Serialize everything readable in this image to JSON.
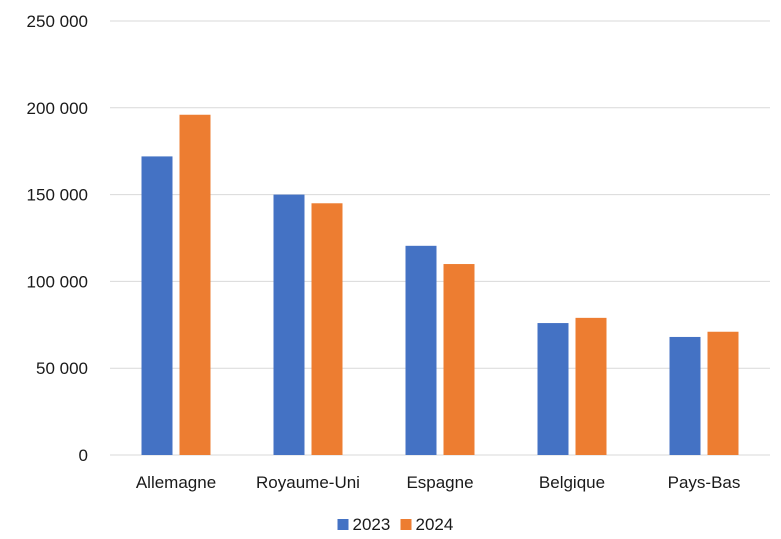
{
  "chart_data": {
    "type": "bar",
    "categories": [
      "Allemagne",
      "Royaume-Uni",
      "Espagne",
      "Belgique",
      "Pays-Bas"
    ],
    "series": [
      {
        "name": "2023",
        "color": "#4472C4",
        "values": [
          172000,
          150000,
          120500,
          76000,
          68000
        ]
      },
      {
        "name": "2024",
        "color": "#ED7D31",
        "values": [
          196000,
          145000,
          110000,
          79000,
          71000
        ]
      }
    ],
    "ylim": [
      0,
      250000
    ],
    "yticks": [
      0,
      50000,
      100000,
      150000,
      200000,
      250000
    ],
    "ytick_labels": [
      "0",
      "50 000",
      "100 000",
      "150 000",
      "200 000",
      "250 000"
    ],
    "grid": true,
    "legend_position": "bottom"
  }
}
